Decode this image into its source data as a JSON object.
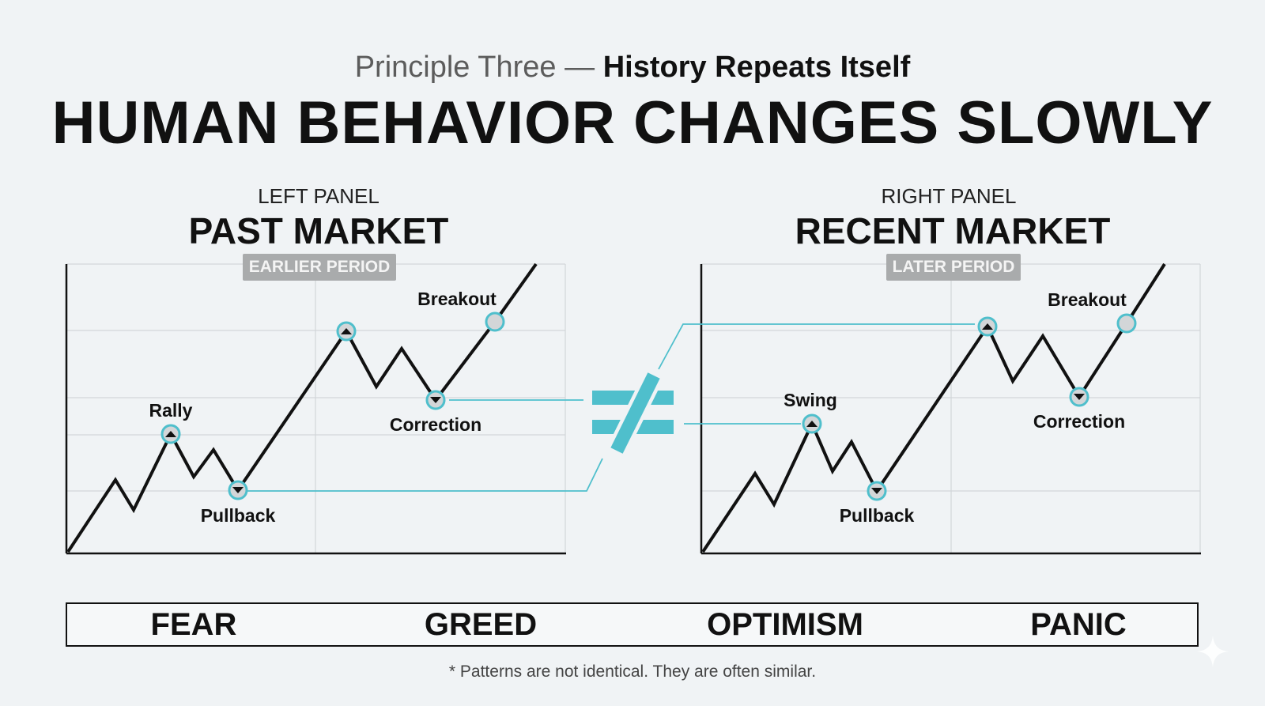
{
  "header": {
    "subtitle_light": "Principle Three",
    "subtitle_dash": "—",
    "subtitle_bold": "History Repeats Itself",
    "title": "HUMAN BEHAVIOR CHANGES SLOWLY"
  },
  "left_panel": {
    "label": "LEFT PANEL",
    "title": "PAST MARKET",
    "badge": "EARLIER PERIOD",
    "annotations": {
      "rally": "Rally",
      "pullback": "Pullback",
      "breakout": "Breakout",
      "correction": "Correction"
    }
  },
  "right_panel": {
    "label": "RIGHT PANEL",
    "title": "RECENT MARKET",
    "badge": "LATER PERIOD",
    "annotations": {
      "swing": "Swing",
      "pullback": "Pullback",
      "breakout": "Breakout",
      "correction": "Correction"
    }
  },
  "emotions": [
    "FEAR",
    "GREED",
    "OPTIMISM",
    "PANIC"
  ],
  "footnote": "* Patterns are not identical. They are often similar.",
  "colors": {
    "background": "#f0f3f5",
    "accent": "#4fbfcc",
    "line": "#111111",
    "badge": "#a9abac",
    "grid": "#d2d6d9"
  },
  "icons": {
    "not_equal": "not-equal-icon",
    "sparkle": "sparkle-icon"
  }
}
